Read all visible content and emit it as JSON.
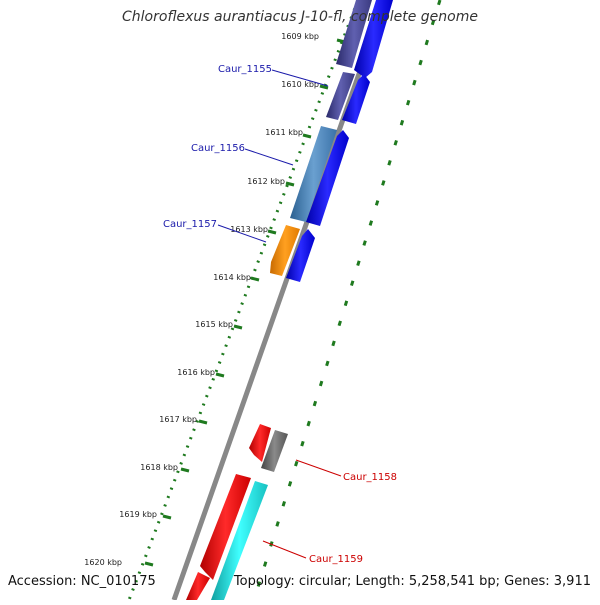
{
  "title": "Chloroflexus aurantiacus J-10-fl, complete genome",
  "footer": {
    "accession": "Accession: NC_010175",
    "summary": "Topology: circular; Length: 5,258,541 bp; Genes: 3,911"
  },
  "colors": {
    "backbone": "#888888",
    "dotted_track": "#1f7a1f",
    "label_forward": "#1a1aaa",
    "label_reverse": "#cc0000"
  },
  "kbp_ticks": [
    "1609 kbp",
    "1610 kbp",
    "1611 kbp",
    "1612 kbp",
    "1613 kbp",
    "1614 kbp",
    "1615 kbp",
    "1616 kbp",
    "1617 kbp",
    "1618 kbp",
    "1619 kbp",
    "1620 kbp"
  ],
  "gene_labels": [
    {
      "text": "Caur_1155",
      "strand": "forward"
    },
    {
      "text": "Caur_1156",
      "strand": "forward"
    },
    {
      "text": "Caur_1157",
      "strand": "forward"
    },
    {
      "text": "Caur_1158",
      "strand": "reverse"
    },
    {
      "text": "Caur_1159",
      "strand": "reverse"
    }
  ],
  "features": [
    {
      "track": "cds-forward",
      "color": "#0000ee",
      "gene": "Caur_1155"
    },
    {
      "track": "cds-forward",
      "color": "#0000ee",
      "gene": "Caur_1156"
    },
    {
      "track": "cds-forward",
      "color": "#0000ee",
      "gene": "Caur_1157"
    },
    {
      "track": "cog-forward",
      "color": "#4a4a9a",
      "gene": "Caur_1155"
    },
    {
      "track": "cog-forward",
      "color": "#4a8ac0",
      "gene": "Caur_1156"
    },
    {
      "track": "cog-forward",
      "color": "#f08a00",
      "gene": "Caur_1157"
    },
    {
      "track": "cds-reverse",
      "color": "#ee0000",
      "gene": "Caur_1158"
    },
    {
      "track": "cds-reverse",
      "color": "#ee0000",
      "gene": "Caur_1159"
    },
    {
      "track": "cog-reverse",
      "color": "#707070",
      "gene": "Caur_1158"
    },
    {
      "track": "cog-reverse",
      "color": "#20cccc",
      "gene": "Caur_1159"
    }
  ]
}
